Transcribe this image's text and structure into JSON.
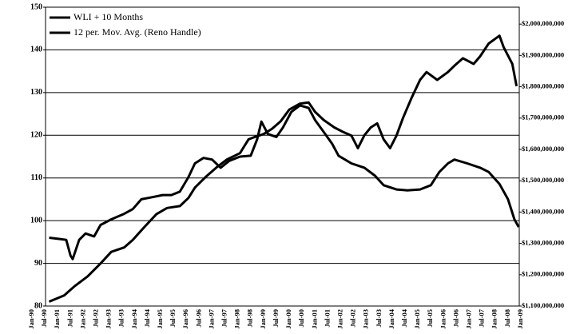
{
  "chart_data": {
    "type": "line",
    "grid": true,
    "legend": "upper-left",
    "ylim": [
      80,
      150
    ],
    "yticks": [
      80,
      90,
      100,
      110,
      120,
      130,
      140,
      150
    ],
    "y2lim": [
      1100000000,
      2054000000
    ],
    "y2ticks": [
      {
        "value": 1100000000,
        "label": "$1,100,000,000"
      },
      {
        "value": 1200000000,
        "label": "$1,200,000,000"
      },
      {
        "value": 1300000000,
        "label": "$1,300,000,000"
      },
      {
        "value": 1400000000,
        "label": "$1,400,000,000"
      },
      {
        "value": 1500000000,
        "label": "$1,500,000,000"
      },
      {
        "value": 1600000000,
        "label": "$1,600,000,000"
      },
      {
        "value": 1700000000,
        "label": "$1,700,000,000"
      },
      {
        "value": 1800000000,
        "label": "$1,800,000,000"
      },
      {
        "value": 1900000000,
        "label": "$1,900,000,000"
      },
      {
        "value": 2000000000,
        "label": "$2,000,000,000"
      }
    ],
    "xticks": [
      "Jan-90",
      "Jul-90",
      "Jan-91",
      "Jul-91",
      "Jan-92",
      "Jul-92",
      "Jan-93",
      "Jul-93",
      "Jan-94",
      "Jul-94",
      "Jan-95",
      "Jul-95",
      "Jan-96",
      "Jul-96",
      "Jan-97",
      "Jul-97",
      "Jan-98",
      "Jul-98",
      "Jan-99",
      "Jul-99",
      "Jan-00",
      "Jul-00",
      "Jan-01",
      "Jul-01",
      "Jan-02",
      "Jul-02",
      "Jan-03",
      "Jul-03",
      "Jan-04",
      "Jul-04",
      "Jan-05",
      "Jul-05",
      "Jan-06",
      "Jul-06",
      "Jan-07",
      "Jul-07",
      "Jan-08",
      "Jul-08",
      "Jan-09"
    ],
    "series": [
      {
        "name": "WLI + 10 Months",
        "color": "#000000",
        "axis": "y",
        "x": [
          "Sep-90",
          "Feb-91",
          "May-91",
          "Jul-91",
          "Aug-91",
          "Nov-91",
          "Feb-92",
          "Jun-92",
          "Sep-92",
          "Feb-93",
          "Aug-93",
          "Dec-93",
          "Apr-94",
          "Sep-94",
          "Feb-95",
          "Jun-95",
          "Oct-95",
          "Feb-96",
          "May-96",
          "Sep-96",
          "Jan-97",
          "May-97",
          "Sep-97",
          "Feb-98",
          "Jul-98",
          "Oct-98",
          "Dec-98",
          "Mar-99",
          "Jul-99",
          "Oct-99",
          "Feb-00",
          "Jun-00",
          "Oct-00",
          "Jan-01",
          "May-01",
          "Sep-01",
          "Dec-01",
          "Jun-02",
          "Dec-02",
          "May-03",
          "Sep-03",
          "Mar-04",
          "Aug-04",
          "Feb-05",
          "Jul-05",
          "Nov-05",
          "Mar-06",
          "Jun-06",
          "Dec-06",
          "Jun-07",
          "Oct-07",
          "Mar-08",
          "Jul-08",
          "Oct-08",
          "Dec-08"
        ],
        "values": [
          96,
          95.7,
          95.5,
          91.8,
          91,
          95.5,
          97,
          96.3,
          99,
          100.3,
          101.6,
          102.7,
          105,
          105.5,
          106,
          106,
          106.8,
          110.2,
          113.4,
          114.7,
          114.3,
          112.4,
          114,
          115,
          115.2,
          119,
          123.2,
          120.3,
          119.6,
          121.8,
          125.5,
          127,
          126.4,
          123.6,
          120.8,
          118,
          115.2,
          113.4,
          112.4,
          110.5,
          108.3,
          107.3,
          107.1,
          107.3,
          108.3,
          111.4,
          113.4,
          114.3,
          113.4,
          112.4,
          111.4,
          108.6,
          105,
          100.3,
          98.5
        ]
      },
      {
        "name": "12 per. Mov. Avg. (Reno Handle)",
        "color": "#000000",
        "axis": "y2",
        "x": [
          "Sep-90",
          "Apr-91",
          "Sep-91",
          "Mar-92",
          "Sep-92",
          "Feb-93",
          "Aug-93",
          "Dec-93",
          "May-94",
          "Nov-94",
          "Apr-95",
          "Oct-95",
          "Feb-96",
          "May-96",
          "Oct-96",
          "Mar-97",
          "Aug-97",
          "Feb-98",
          "Jun-98",
          "Sep-98",
          "Jan-99",
          "May-99",
          "Sep-99",
          "Jan-00",
          "Jun-00",
          "Oct-00",
          "Jan-01",
          "May-01",
          "Oct-01",
          "Feb-02",
          "Jun-02",
          "Sep-02",
          "Dec-02",
          "Mar-03",
          "Jun-03",
          "Sep-03",
          "Dec-03",
          "Mar-04",
          "Jun-04",
          "Oct-04",
          "Feb-05",
          "May-05",
          "Oct-05",
          "Mar-06",
          "Jun-06",
          "Oct-06",
          "Mar-07",
          "Jun-07",
          "Oct-07",
          "Mar-08",
          "May-08",
          "Sep-08",
          "Nov-08"
        ],
        "values": [
          1114000000,
          1134000000,
          1164000000,
          1195000000,
          1236000000,
          1273000000,
          1287000000,
          1311000000,
          1349000000,
          1393000000,
          1413000000,
          1419000000,
          1445000000,
          1478000000,
          1512000000,
          1542000000,
          1568000000,
          1588000000,
          1632000000,
          1640000000,
          1649000000,
          1666000000,
          1690000000,
          1727000000,
          1746000000,
          1750000000,
          1720000000,
          1694000000,
          1670000000,
          1656000000,
          1644000000,
          1604000000,
          1645000000,
          1670000000,
          1683000000,
          1632000000,
          1604000000,
          1644000000,
          1700000000,
          1764000000,
          1822000000,
          1847000000,
          1822000000,
          1847000000,
          1867000000,
          1891000000,
          1873000000,
          1897000000,
          1938000000,
          1963000000,
          1926000000,
          1873000000,
          1802000000
        ]
      }
    ]
  }
}
